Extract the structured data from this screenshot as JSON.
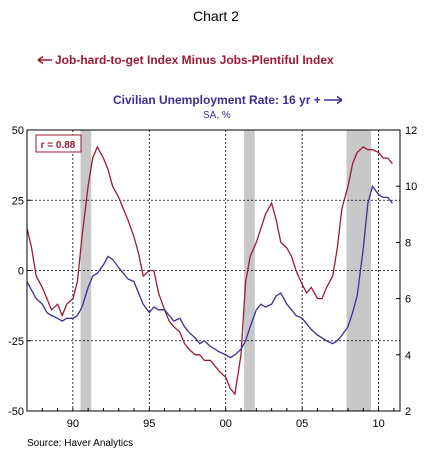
{
  "chart_data": {
    "type": "line",
    "title": "Chart 2",
    "source": "Source: Haver Analytics",
    "colors": {
      "index": "#9b1b30",
      "unemployment": "#3b2e96",
      "recession": "#c8c8c8"
    },
    "grid": "dashed",
    "series": [
      {
        "name": "Job-hard-to-get Index Minus Jobs-Plentiful Index",
        "legend_text": "Job-hard-to-get Index Minus Jobs-Plentiful Index",
        "axis": "left",
        "x": [
          1987.0,
          1987.3,
          1987.6,
          1988.0,
          1988.3,
          1988.6,
          1989.0,
          1989.3,
          1989.6,
          1990.0,
          1990.3,
          1990.6,
          1991.0,
          1991.3,
          1991.6,
          1992.0,
          1992.3,
          1992.6,
          1993.0,
          1993.3,
          1993.6,
          1994.0,
          1994.3,
          1994.6,
          1995.0,
          1995.3,
          1995.6,
          1996.0,
          1996.3,
          1996.6,
          1997.0,
          1997.3,
          1997.6,
          1998.0,
          1998.3,
          1998.6,
          1999.0,
          1999.3,
          1999.6,
          2000.0,
          2000.3,
          2000.6,
          2001.0,
          2001.3,
          2001.6,
          2002.0,
          2002.3,
          2002.6,
          2003.0,
          2003.3,
          2003.6,
          2004.0,
          2004.3,
          2004.6,
          2005.0,
          2005.3,
          2005.6,
          2006.0,
          2006.3,
          2006.6,
          2007.0,
          2007.3,
          2007.6,
          2008.0,
          2008.3,
          2008.6,
          2009.0,
          2009.3,
          2009.6,
          2010.0,
          2010.3,
          2010.6,
          2010.9
        ],
        "values": [
          15,
          8,
          -2,
          -6,
          -10,
          -14,
          -12,
          -16,
          -12,
          -10,
          -4,
          12,
          30,
          40,
          44,
          40,
          36,
          30,
          26,
          22,
          18,
          12,
          6,
          -2,
          0,
          0,
          -8,
          -14,
          -18,
          -20,
          -22,
          -26,
          -28,
          -30,
          -30,
          -32,
          -32,
          -34,
          -36,
          -38,
          -42,
          -44,
          -30,
          -4,
          5,
          10,
          15,
          20,
          24,
          18,
          10,
          8,
          5,
          0,
          -5,
          -8,
          -6,
          -10,
          -10,
          -6,
          -2,
          8,
          22,
          30,
          38,
          42,
          44,
          43,
          43,
          42,
          40,
          40,
          38
        ]
      },
      {
        "name": "Civilian Unemployment Rate: 16 yr +",
        "legend_text": "Civilian Unemployment Rate: 16 yr +",
        "note": "SA, %",
        "axis": "right",
        "x": [
          1987.0,
          1987.3,
          1987.6,
          1988.0,
          1988.3,
          1988.6,
          1989.0,
          1989.3,
          1989.6,
          1990.0,
          1990.3,
          1990.6,
          1991.0,
          1991.3,
          1991.6,
          1992.0,
          1992.3,
          1992.6,
          1993.0,
          1993.3,
          1993.6,
          1994.0,
          1994.3,
          1994.6,
          1995.0,
          1995.3,
          1995.6,
          1996.0,
          1996.3,
          1996.6,
          1997.0,
          1997.3,
          1997.6,
          1998.0,
          1998.3,
          1998.6,
          1999.0,
          1999.3,
          1999.6,
          2000.0,
          2000.3,
          2000.6,
          2001.0,
          2001.3,
          2001.6,
          2002.0,
          2002.3,
          2002.6,
          2003.0,
          2003.3,
          2003.6,
          2004.0,
          2004.3,
          2004.6,
          2005.0,
          2005.3,
          2005.6,
          2006.0,
          2006.3,
          2006.6,
          2007.0,
          2007.3,
          2007.6,
          2008.0,
          2008.3,
          2008.6,
          2009.0,
          2009.3,
          2009.6,
          2010.0,
          2010.3,
          2010.6,
          2010.9
        ],
        "values": [
          6.6,
          6.3,
          6.0,
          5.8,
          5.5,
          5.4,
          5.3,
          5.2,
          5.3,
          5.3,
          5.4,
          5.7,
          6.4,
          6.8,
          6.9,
          7.2,
          7.5,
          7.4,
          7.1,
          6.9,
          6.7,
          6.6,
          6.2,
          5.8,
          5.5,
          5.7,
          5.6,
          5.6,
          5.4,
          5.2,
          5.3,
          5.0,
          4.8,
          4.6,
          4.4,
          4.5,
          4.3,
          4.2,
          4.1,
          4.0,
          3.9,
          4.0,
          4.2,
          4.5,
          5.0,
          5.6,
          5.8,
          5.7,
          5.8,
          6.1,
          6.2,
          5.8,
          5.6,
          5.4,
          5.3,
          5.1,
          4.9,
          4.7,
          4.6,
          4.5,
          4.4,
          4.5,
          4.7,
          5.0,
          5.5,
          6.1,
          7.8,
          9.4,
          10.0,
          9.7,
          9.6,
          9.6,
          9.4
        ]
      }
    ],
    "recessions": [
      [
        1990.5,
        1991.2
      ],
      [
        2001.2,
        2001.9
      ],
      [
        2007.9,
        2009.5
      ]
    ],
    "left_axis": {
      "ylim": [
        -50,
        50
      ],
      "ticks": [
        50,
        25,
        0,
        -25,
        -50
      ],
      "labels": [
        "50",
        "25",
        "0",
        "-25",
        "-50"
      ]
    },
    "right_axis": {
      "ylim": [
        2,
        12
      ],
      "ticks": [
        12,
        10,
        8,
        6,
        4,
        2
      ],
      "labels": [
        "12",
        "10",
        "8",
        "6",
        "4",
        "2"
      ]
    },
    "x_axis": {
      "xlim": [
        1987.0,
        2011.4
      ],
      "major_ticks": [
        1990,
        1995,
        2000,
        2005,
        2010
      ],
      "labels": [
        "90",
        "95",
        "00",
        "05",
        "10"
      ]
    },
    "annotation": "r = 0.88"
  }
}
